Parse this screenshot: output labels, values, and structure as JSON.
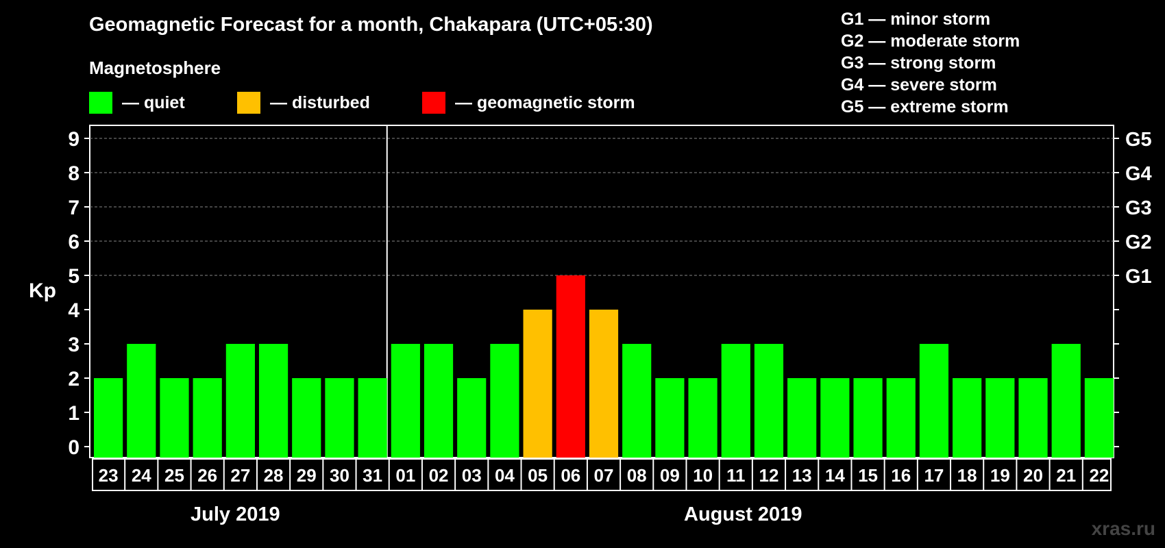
{
  "chart_data": {
    "type": "bar",
    "title": "Geomagnetic Forecast for a month, Chakapara (UTC+05:30)",
    "ylabel": "Kp",
    "ylim": [
      0,
      9
    ],
    "yticks": [
      "0",
      "1",
      "2",
      "3",
      "4",
      "5",
      "6",
      "7",
      "8",
      "9"
    ],
    "right_axis_labels": [
      {
        "kp": 5,
        "label": "G1"
      },
      {
        "kp": 6,
        "label": "G2"
      },
      {
        "kp": 7,
        "label": "G3"
      },
      {
        "kp": 8,
        "label": "G4"
      },
      {
        "kp": 9,
        "label": "G5"
      }
    ],
    "categories": [
      "23",
      "24",
      "25",
      "26",
      "27",
      "28",
      "29",
      "30",
      "31",
      "01",
      "02",
      "03",
      "04",
      "05",
      "06",
      "07",
      "08",
      "09",
      "10",
      "11",
      "12",
      "13",
      "14",
      "15",
      "16",
      "17",
      "18",
      "19",
      "20",
      "21",
      "22"
    ],
    "values": [
      2,
      3,
      2,
      2,
      3,
      3,
      2,
      2,
      2,
      3,
      3,
      2,
      3,
      4,
      5,
      4,
      3,
      2,
      2,
      3,
      3,
      2,
      2,
      2,
      2,
      3,
      2,
      2,
      2,
      3,
      2
    ],
    "months": [
      {
        "label": "July 2019",
        "days": 9
      },
      {
        "label": "August 2019",
        "days": 22
      }
    ],
    "legend": {
      "heading": "Magnetosphere",
      "items": [
        {
          "label": "— quiet",
          "color": "#00ff00"
        },
        {
          "label": "— disturbed",
          "color": "#ffc000"
        },
        {
          "label": "— geomagnetic storm",
          "color": "#ff0000"
        }
      ]
    },
    "storm_scale": [
      "G1 — minor storm",
      "G2 — moderate storm",
      "G3 — strong storm",
      "G4 — severe storm",
      "G5 — extreme storm"
    ]
  },
  "watermark": "xras.ru"
}
